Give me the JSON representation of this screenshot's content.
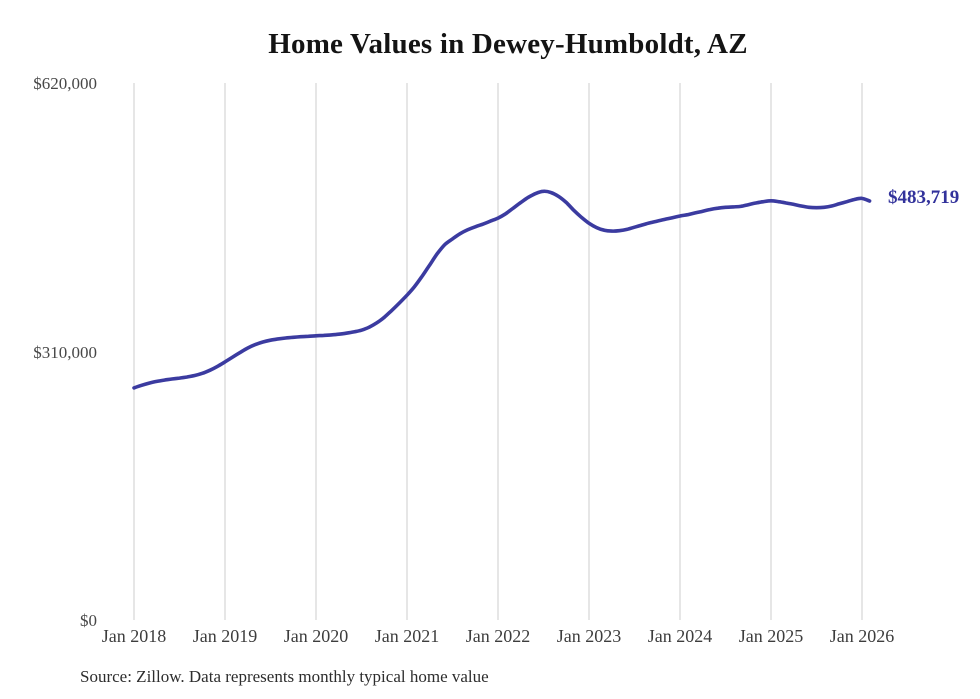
{
  "title": "Home Values in Dewey-Humboldt, AZ",
  "source_note": "Source: Zillow. Data represents monthly typical home value",
  "end_label": "$483,719",
  "colors": {
    "line": "#3b3ba0",
    "end_label": "#32329b",
    "gridline": "#cccccc",
    "axis_text": "#3d3d3d",
    "title_text": "#141414",
    "source_text": "#2d2d2d",
    "background": "#ffffff"
  },
  "chart_data": {
    "type": "line",
    "title": "Home Values in Dewey-Humboldt, AZ",
    "xlabel": "",
    "ylabel": "",
    "ylim": [
      0,
      620000
    ],
    "grid": "vertical-only",
    "legend": "none",
    "y_ticks": [
      {
        "label": "$0",
        "value": 0
      },
      {
        "label": "$310,000",
        "value": 310000
      },
      {
        "label": "$620,000",
        "value": 620000
      }
    ],
    "x_ticks": [
      "Jan 2018",
      "Jan 2019",
      "Jan 2020",
      "Jan 2021",
      "Jan 2022",
      "Jan 2023",
      "Jan 2024",
      "Jan 2025",
      "Jan 2026"
    ],
    "latest_value": 483719,
    "latest_label": "$483,719",
    "series": [
      {
        "name": "Monthly typical home value",
        "x": [
          "Jan 2018",
          "Feb 2018",
          "Mar 2018",
          "Apr 2018",
          "May 2018",
          "Jun 2018",
          "Jul 2018",
          "Aug 2018",
          "Sep 2018",
          "Oct 2018",
          "Nov 2018",
          "Dec 2018",
          "Jan 2019",
          "Feb 2019",
          "Mar 2019",
          "Apr 2019",
          "May 2019",
          "Jun 2019",
          "Jul 2019",
          "Aug 2019",
          "Sep 2019",
          "Oct 2019",
          "Nov 2019",
          "Dec 2019",
          "Jan 2020",
          "Feb 2020",
          "Mar 2020",
          "Apr 2020",
          "May 2020",
          "Jun 2020",
          "Jul 2020",
          "Aug 2020",
          "Sep 2020",
          "Oct 2020",
          "Nov 2020",
          "Dec 2020",
          "Jan 2021",
          "Feb 2021",
          "Mar 2021",
          "Apr 2021",
          "May 2021",
          "Jun 2021",
          "Jul 2021",
          "Aug 2021",
          "Sep 2021",
          "Oct 2021",
          "Nov 2021",
          "Dec 2021",
          "Jan 2022",
          "Feb 2022",
          "Mar 2022",
          "Apr 2022",
          "May 2022",
          "Jun 2022",
          "Jul 2022",
          "Aug 2022",
          "Sep 2022",
          "Oct 2022",
          "Nov 2022",
          "Dec 2022",
          "Jan 2023",
          "Feb 2023",
          "Mar 2023",
          "Apr 2023",
          "May 2023",
          "Jun 2023",
          "Jul 2023",
          "Aug 2023",
          "Sep 2023",
          "Oct 2023",
          "Nov 2023",
          "Dec 2023",
          "Jan 2024",
          "Feb 2024",
          "Mar 2024",
          "Apr 2024",
          "May 2024",
          "Jun 2024",
          "Jul 2024",
          "Aug 2024",
          "Sep 2024",
          "Oct 2024",
          "Nov 2024",
          "Dec 2024",
          "Jan 2025",
          "Feb 2025",
          "Mar 2025",
          "Apr 2025",
          "May 2025",
          "Jun 2025",
          "Jul 2025",
          "Aug 2025",
          "Sep 2025",
          "Oct 2025",
          "Nov 2025",
          "Dec 2025",
          "Jan 2026",
          "Feb 2026"
        ],
        "values": [
          268000,
          271000,
          273500,
          275500,
          277000,
          278200,
          279300,
          280600,
          282300,
          284800,
          288300,
          292800,
          298000,
          303500,
          309000,
          314000,
          318000,
          321000,
          323000,
          324500,
          325600,
          326400,
          327100,
          327600,
          328100,
          328600,
          329200,
          330000,
          331100,
          332600,
          334600,
          338000,
          343000,
          349500,
          357500,
          366000,
          375000,
          385000,
          397000,
          410000,
          423000,
          433500,
          440000,
          446000,
          450500,
          454000,
          457000,
          460500,
          464000,
          469000,
          475500,
          482000,
          488000,
          492500,
          495000,
          493500,
          489000,
          482000,
          473000,
          465000,
          458000,
          453000,
          450000,
          449000,
          449500,
          451000,
          453500,
          456000,
          458500,
          460500,
          462500,
          464500,
          466500,
          468000,
          470000,
          472000,
          474000,
          475500,
          476500,
          477000,
          477500,
          479500,
          481500,
          483000,
          484000,
          483000,
          481500,
          479800,
          478000,
          476500,
          476000,
          476500,
          478000,
          480500,
          483000,
          485500,
          486800,
          483719
        ]
      }
    ]
  }
}
